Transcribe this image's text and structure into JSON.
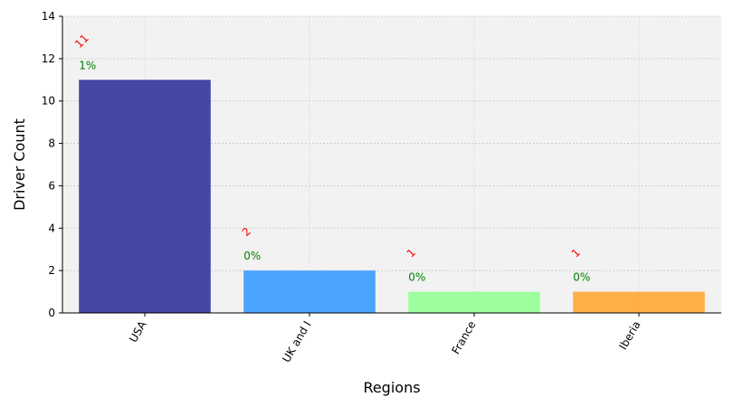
{
  "chart_data": {
    "type": "bar",
    "title": "",
    "xlabel": "Regions",
    "ylabel": "Driver Count",
    "categories": [
      "USA",
      "UK and I",
      "France",
      "Iberia"
    ],
    "values": [
      11,
      2,
      1,
      1
    ],
    "count_labels": [
      "11",
      "2",
      "1",
      "1"
    ],
    "percent_labels": [
      "1%",
      "0%",
      "0%",
      "0%"
    ],
    "bar_colors": [
      "#2e2e99",
      "#3399ff",
      "#90ff90",
      "#ffa530"
    ],
    "count_label_color": "#ff0000",
    "percent_label_color": "#008000",
    "plot_background": "#f2f2f2",
    "ylim": [
      0,
      14
    ],
    "yticks": [
      "0",
      "2",
      "4",
      "6",
      "8",
      "10",
      "12",
      "14"
    ],
    "grid": true,
    "legend": "none"
  }
}
